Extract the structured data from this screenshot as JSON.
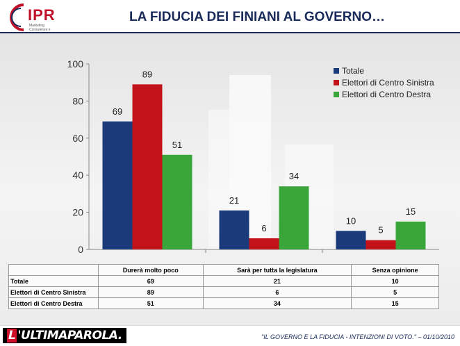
{
  "header": {
    "logo_text": "IPR",
    "logo_subtitle": "Marketing Consulenze e Ricerche",
    "title": "LA FIDUCIA DEI FINIANI AL GOVERNO…"
  },
  "footer": {
    "brand_first": "L",
    "brand_rest": "'ULTIMAPAROLA.",
    "caption": "\"IL GOVERNO E LA FIDUCIA - INTENZIONI DI VOTO.\" – 01/10/2010"
  },
  "colors": {
    "totale": "#1a3a7a",
    "centro_sinistra": "#c4121a",
    "centro_destra": "#3aa63a"
  },
  "chart_data": {
    "type": "bar",
    "categories": [
      "Durerà molto poco",
      "Sarà per tutta la legislatura",
      "Senza opinione"
    ],
    "series": [
      {
        "name": "Totale",
        "values": [
          69,
          21,
          10
        ]
      },
      {
        "name": "Elettori di Centro Sinistra",
        "values": [
          89,
          6,
          5
        ]
      },
      {
        "name": "Elettori di Centro Destra",
        "values": [
          51,
          34,
          15
        ]
      }
    ],
    "ylim": [
      0,
      100
    ],
    "yticks": [
      "0",
      "20",
      "40",
      "60",
      "80",
      "100"
    ],
    "legend": "top-right",
    "grid": false
  },
  "table": {
    "rows": [
      {
        "label": "Totale",
        "values": [
          "69",
          "21",
          "10"
        ]
      },
      {
        "label": "Elettori di Centro Sinistra",
        "values": [
          "89",
          "6",
          "5"
        ]
      },
      {
        "label": "Elettori di Centro Destra",
        "values": [
          "51",
          "34",
          "15"
        ]
      }
    ]
  }
}
